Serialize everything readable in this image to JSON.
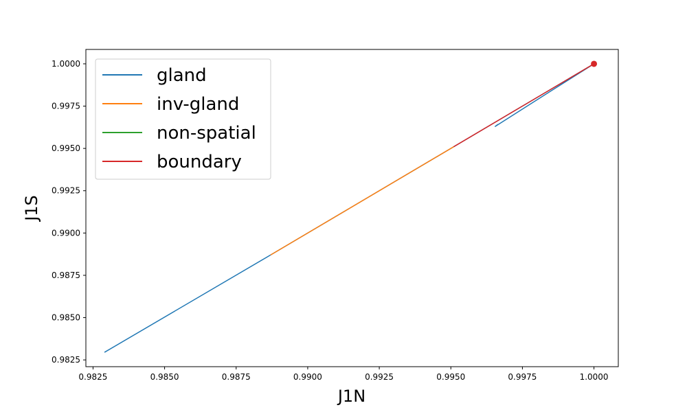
{
  "chart_data": {
    "type": "line",
    "title": "",
    "xlabel": "J1N",
    "ylabel": "J1S",
    "xlim": [
      0.98225,
      1.00085
    ],
    "ylim": [
      0.9821,
      1.00085
    ],
    "x_ticks": [
      "0.9825",
      "0.9850",
      "0.9875",
      "0.9900",
      "0.9925",
      "0.9950",
      "0.9975",
      "1.0000"
    ],
    "y_ticks": [
      "0.9825",
      "0.9850",
      "0.9875",
      "0.9900",
      "0.9925",
      "0.9950",
      "0.9975",
      "1.0000"
    ],
    "grid": false,
    "legend_position": "top-left",
    "series": [
      {
        "name": "gland",
        "color": "#1f77b4",
        "x": [
          0.9829,
          0.9887,
          1.0,
          0.9985,
          0.99655,
          0.99665
        ],
        "y": [
          0.98295,
          0.9887,
          1.0,
          0.9984,
          0.9963,
          0.99643
        ]
      },
      {
        "name": "inv-gland",
        "color": "#ff7f0e",
        "x": [
          0.9887,
          0.9951
        ],
        "y": [
          0.9887,
          0.9951
        ]
      },
      {
        "name": "non-spatial",
        "color": "#2ca02c",
        "x": [
          1.0
        ],
        "y": [
          1.0
        ]
      },
      {
        "name": "boundary",
        "color": "#d62728",
        "x": [
          0.9951,
          1.0
        ],
        "y": [
          0.9951,
          1.0
        ]
      }
    ],
    "marker": {
      "x": 1.0,
      "y": 1.0,
      "color": "#d62728"
    }
  }
}
